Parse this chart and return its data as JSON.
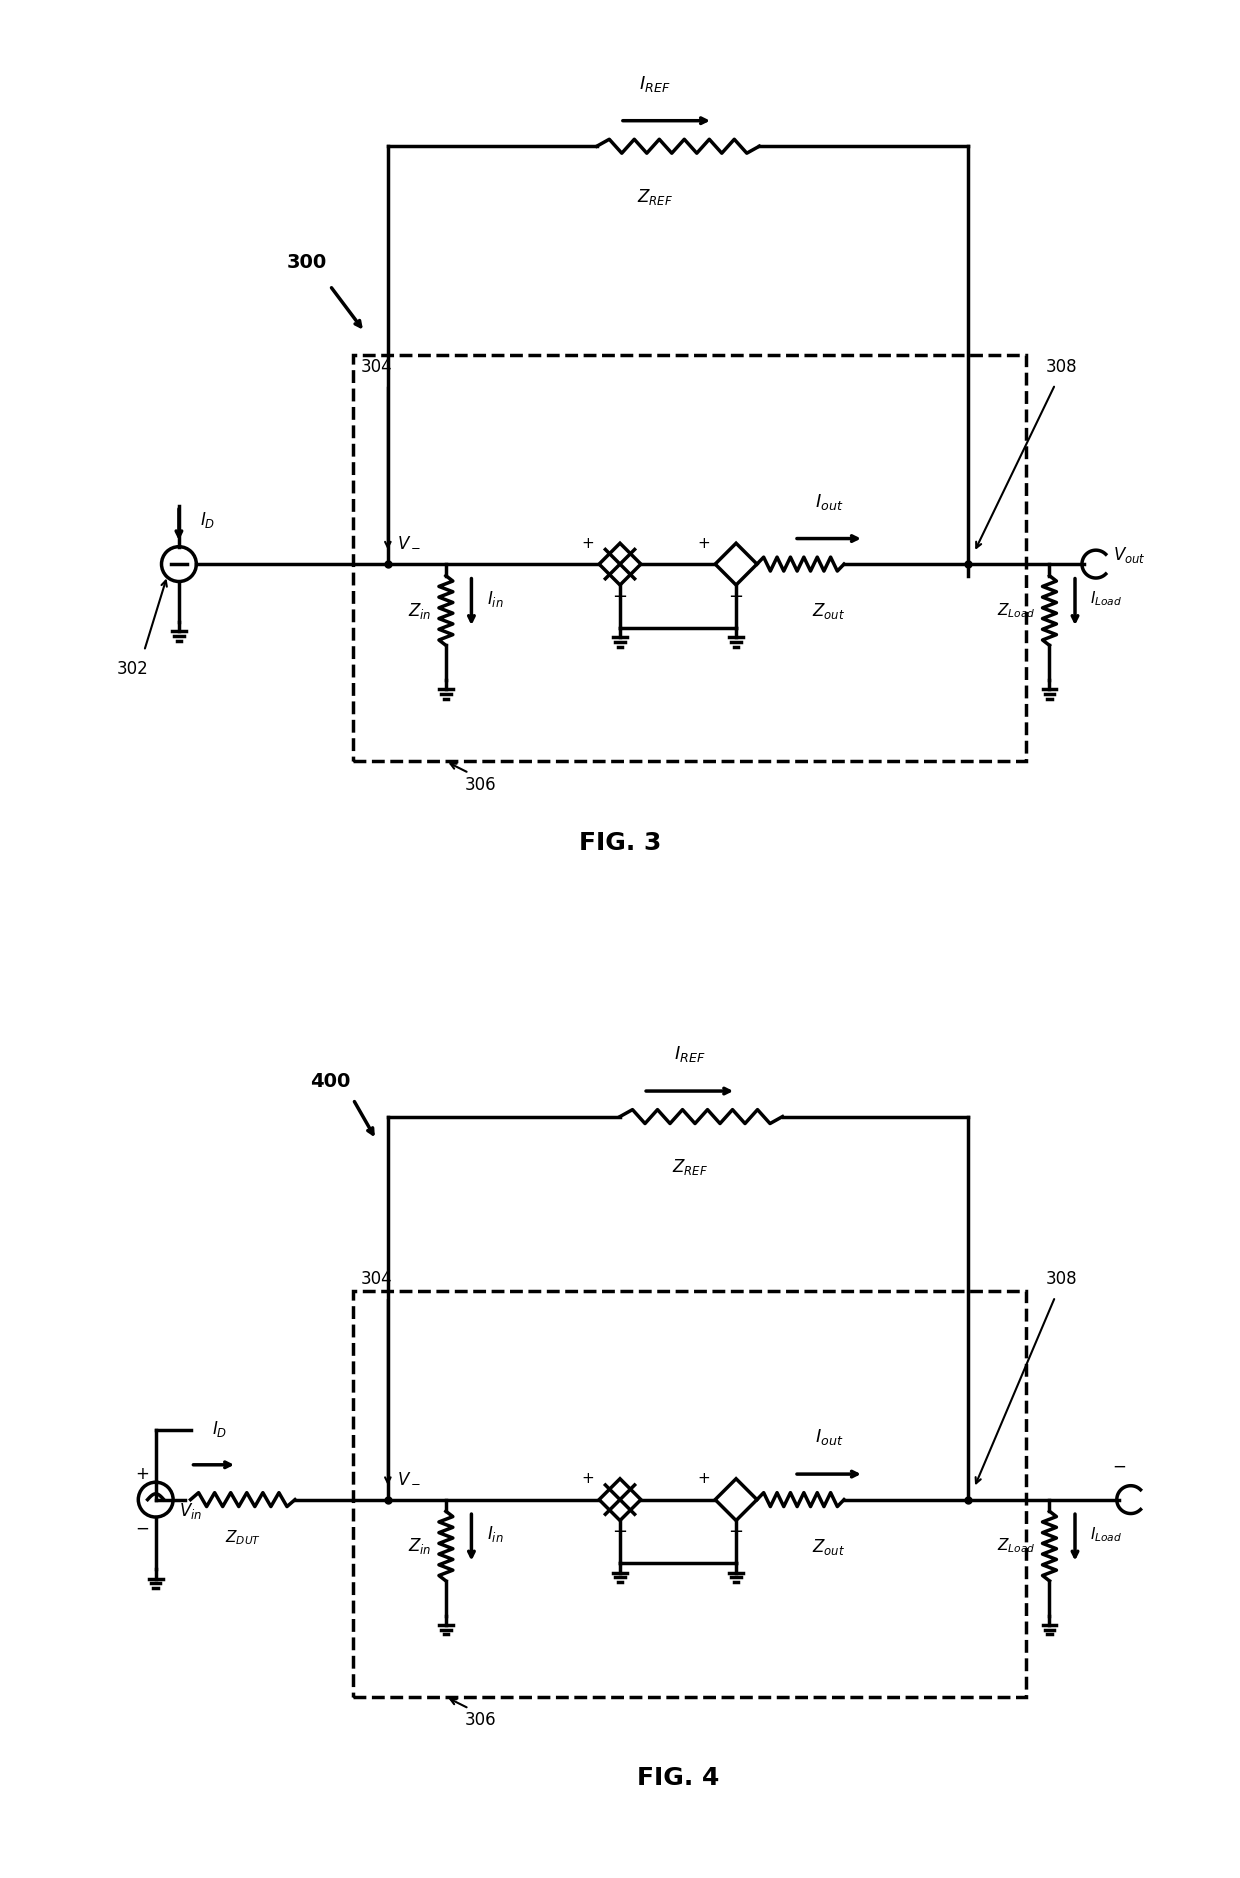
{
  "background_color": "#ffffff",
  "line_color": "#000000",
  "line_width": 2.5,
  "fig_width": 12.4,
  "fig_height": 18.78,
  "fig3_label": "FIG. 3",
  "fig4_label": "FIG. 4",
  "fig3_number": "300",
  "fig4_number": "400",
  "label_302": "302",
  "label_304": "304",
  "label_306": "306",
  "label_308": "308"
}
